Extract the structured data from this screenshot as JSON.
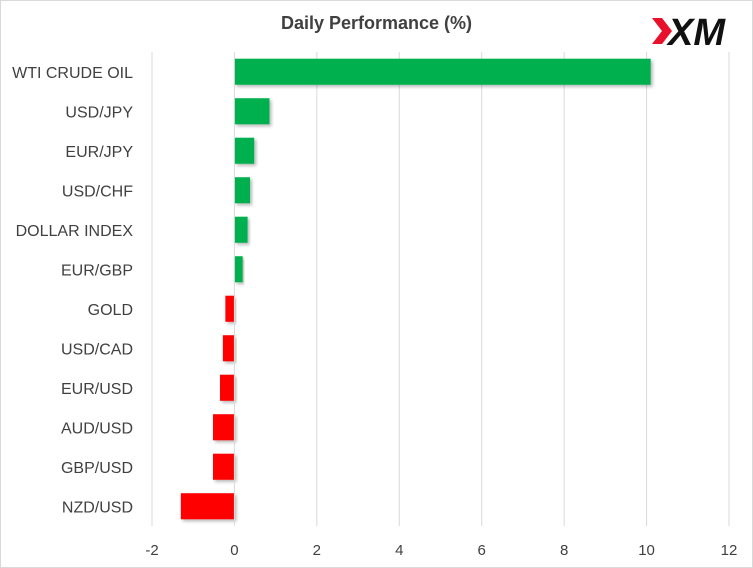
{
  "chart_data": {
    "type": "bar",
    "orientation": "horizontal",
    "title": "Daily Performance  (%)",
    "categories": [
      "WTI CRUDE OIL",
      "USD/JPY",
      "EUR/JPY",
      "USD/CHF",
      "DOLLAR INDEX",
      "EUR/GBP",
      "GOLD",
      "USD/CAD",
      "EUR/USD",
      "AUD/USD",
      "GBP/USD",
      "NZD/USD"
    ],
    "values": [
      10.1,
      0.85,
      0.48,
      0.38,
      0.32,
      0.2,
      -0.22,
      -0.28,
      -0.35,
      -0.52,
      -0.52,
      -1.3
    ],
    "xlim": [
      -2,
      12
    ],
    "xticks": [
      -2,
      0,
      2,
      4,
      6,
      8,
      10,
      12
    ],
    "grid": true,
    "legend": "none",
    "colors": {
      "positive": "#00b050",
      "negative": "#ff0000",
      "grid": "#d9d9d9",
      "text": "#404040"
    }
  },
  "logo": {
    "text": "XM",
    "accent_color": "#e8102a"
  }
}
